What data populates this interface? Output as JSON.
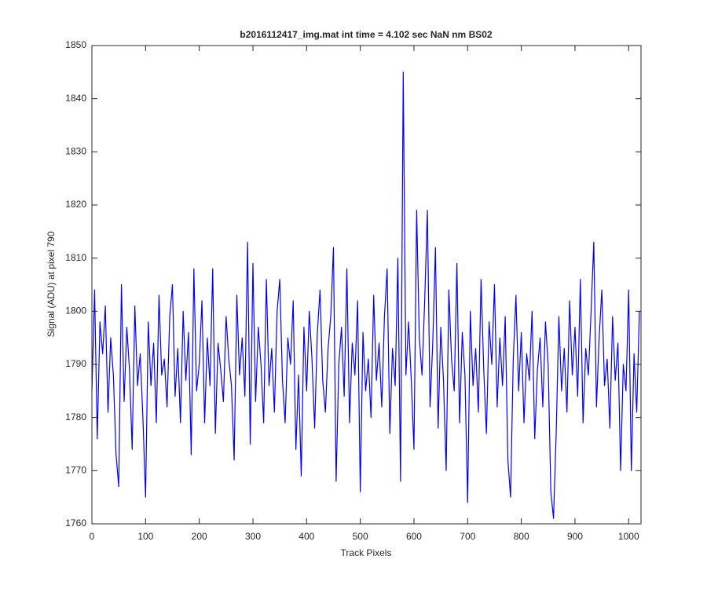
{
  "chart_data": {
    "type": "line",
    "title": "b2016112417_img.mat int time = 4.102 sec  NaN nm BS02",
    "x_label": "Track Pixels",
    "y_label": "Signal (ADU) at pixel 790",
    "color": "#0000ff",
    "xlim": [
      0,
      1023
    ],
    "ylim": [
      1760,
      1850
    ],
    "xticks": [
      0,
      100,
      200,
      300,
      400,
      500,
      600,
      700,
      800,
      900,
      1000
    ],
    "yticks": [
      1760,
      1770,
      1780,
      1790,
      1800,
      1810,
      1820,
      1830,
      1840,
      1850
    ],
    "grid": false,
    "x": [
      0,
      5,
      10,
      15,
      20,
      25,
      30,
      35,
      40,
      45,
      50,
      55,
      60,
      65,
      70,
      75,
      80,
      85,
      90,
      95,
      100,
      105,
      110,
      115,
      120,
      125,
      130,
      135,
      140,
      145,
      150,
      155,
      160,
      165,
      170,
      175,
      180,
      185,
      190,
      195,
      200,
      205,
      210,
      215,
      220,
      225,
      230,
      235,
      240,
      245,
      250,
      255,
      260,
      265,
      270,
      275,
      280,
      285,
      290,
      295,
      300,
      305,
      310,
      315,
      320,
      325,
      330,
      335,
      340,
      345,
      350,
      355,
      360,
      365,
      370,
      375,
      380,
      385,
      390,
      395,
      400,
      405,
      410,
      415,
      420,
      425,
      430,
      435,
      440,
      445,
      450,
      455,
      460,
      465,
      470,
      475,
      480,
      485,
      490,
      495,
      500,
      505,
      510,
      515,
      520,
      525,
      530,
      535,
      540,
      545,
      550,
      555,
      560,
      565,
      570,
      575,
      580,
      585,
      590,
      595,
      600,
      605,
      610,
      615,
      620,
      625,
      630,
      635,
      640,
      645,
      650,
      655,
      660,
      665,
      670,
      675,
      680,
      685,
      690,
      695,
      700,
      705,
      710,
      715,
      720,
      725,
      730,
      735,
      740,
      745,
      750,
      755,
      760,
      765,
      770,
      775,
      780,
      785,
      790,
      795,
      800,
      805,
      810,
      815,
      820,
      825,
      830,
      835,
      840,
      845,
      850,
      855,
      860,
      865,
      870,
      875,
      880,
      885,
      890,
      895,
      900,
      905,
      910,
      915,
      920,
      925,
      930,
      935,
      940,
      945,
      950,
      955,
      960,
      965,
      970,
      975,
      980,
      985,
      990,
      995,
      1000,
      1005,
      1010,
      1015,
      1020
    ],
    "values": [
      1785,
      1804,
      1776,
      1798,
      1792,
      1801,
      1781,
      1795,
      1788,
      1773,
      1767,
      1805,
      1783,
      1797,
      1789,
      1774,
      1801,
      1786,
      1792,
      1780,
      1765,
      1798,
      1786,
      1794,
      1779,
      1803,
      1788,
      1791,
      1782,
      1799,
      1805,
      1784,
      1793,
      1779,
      1800,
      1787,
      1796,
      1773,
      1808,
      1785,
      1790,
      1802,
      1779,
      1795,
      1786,
      1808,
      1777,
      1794,
      1789,
      1783,
      1799,
      1791,
      1786,
      1772,
      1803,
      1788,
      1795,
      1784,
      1813,
      1775,
      1809,
      1783,
      1797,
      1790,
      1779,
      1806,
      1786,
      1793,
      1781,
      1800,
      1806,
      1787,
      1779,
      1795,
      1790,
      1802,
      1774,
      1788,
      1769,
      1797,
      1785,
      1800,
      1791,
      1778,
      1796,
      1804,
      1787,
      1781,
      1793,
      1799,
      1812,
      1768,
      1790,
      1797,
      1784,
      1808,
      1779,
      1794,
      1788,
      1802,
      1766,
      1796,
      1785,
      1791,
      1780,
      1803,
      1787,
      1794,
      1782,
      1799,
      1808,
      1777,
      1793,
      1786,
      1810,
      1768,
      1845,
      1788,
      1798,
      1787,
      1774,
      1819,
      1795,
      1788,
      1802,
      1819,
      1782,
      1794,
      1812,
      1778,
      1797,
      1787,
      1770,
      1804,
      1791,
      1785,
      1809,
      1779,
      1796,
      1788,
      1764,
      1800,
      1786,
      1793,
      1781,
      1806,
      1789,
      1777,
      1798,
      1790,
      1805,
      1782,
      1795,
      1786,
      1799,
      1772,
      1765,
      1791,
      1803,
      1785,
      1796,
      1779,
      1792,
      1787,
      1800,
      1776,
      1789,
      1795,
      1782,
      1798,
      1790,
      1766,
      1761,
      1777,
      1799,
      1785,
      1793,
      1781,
      1802,
      1788,
      1797,
      1784,
      1806,
      1779,
      1793,
      1788,
      1800,
      1813,
      1782,
      1795,
      1804,
      1786,
      1791,
      1778,
      1799,
      1787,
      1794,
      1770,
      1790,
      1785,
      1804,
      1770,
      1792,
      1781,
      1800
    ]
  }
}
